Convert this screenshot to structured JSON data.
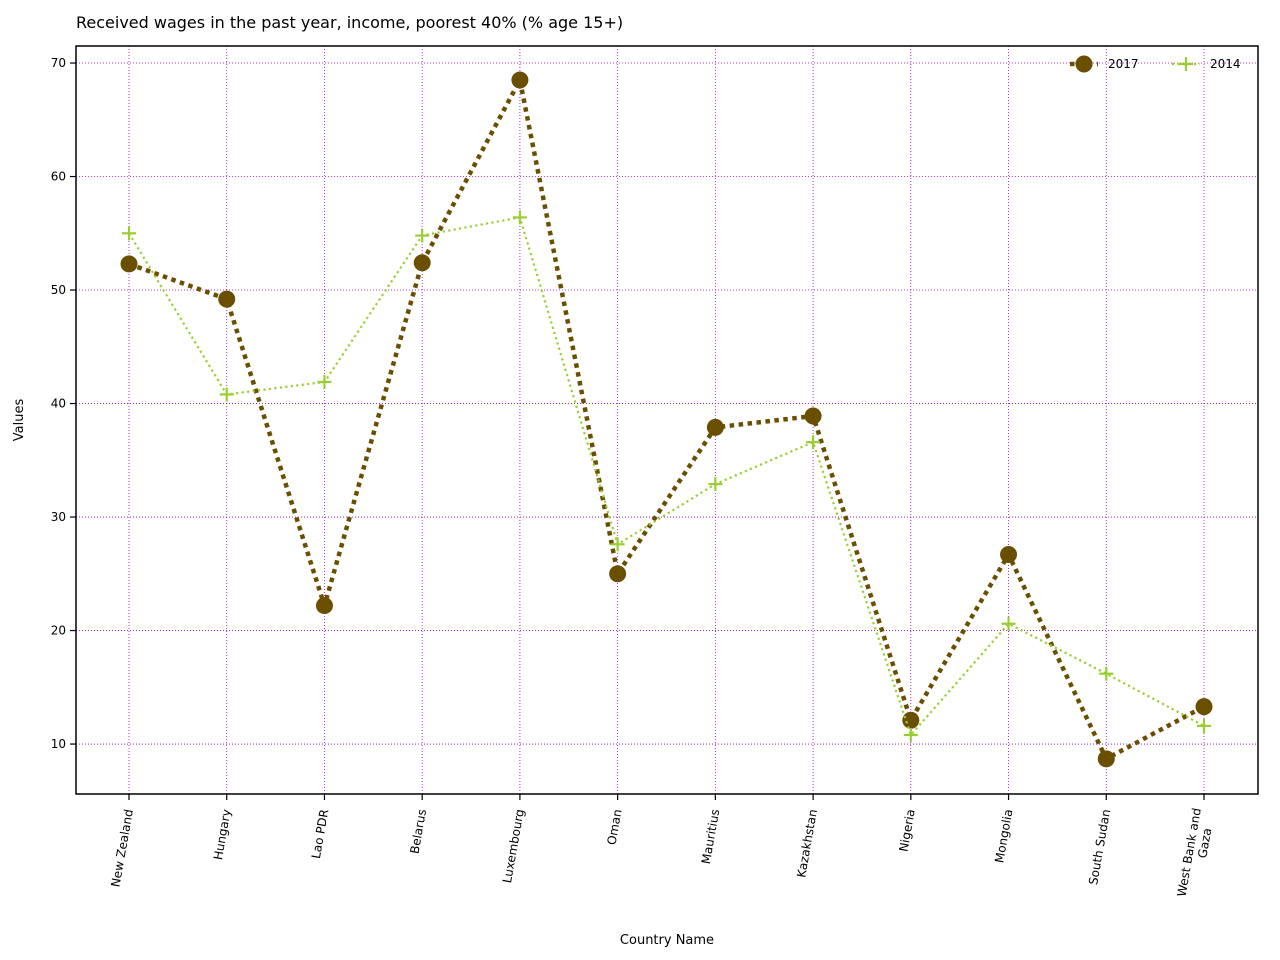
{
  "chart_data": {
    "type": "line",
    "title": "Received wages in the past year, income, poorest 40%  (% age 15+)",
    "xlabel": "Country Name",
    "ylabel": "Values",
    "categories": [
      "New Zealand",
      "Hungary",
      "Lao PDR",
      "Belarus",
      "Luxembourg",
      "Oman",
      "Mauritius",
      "Kazakhstan",
      "Nigeria",
      "Mongolia",
      "South Sudan",
      "West Bank and Gaza"
    ],
    "series": [
      {
        "name": "2017",
        "color": "#6b4f00",
        "marker": "circle",
        "line_style": "dotted-thick",
        "values": [
          52.3,
          49.2,
          22.2,
          52.4,
          68.5,
          25.0,
          37.9,
          38.9,
          12.1,
          26.7,
          8.7,
          13.3
        ]
      },
      {
        "name": "2014",
        "color": "#9acd32",
        "marker": "plus",
        "line_style": "dotted-thin",
        "values": [
          55.0,
          40.8,
          41.9,
          54.8,
          56.4,
          27.6,
          32.9,
          36.6,
          10.8,
          20.6,
          16.2,
          11.6
        ]
      }
    ],
    "yticks": [
      10,
      20,
      30,
      40,
      50,
      60,
      70
    ],
    "ylim": [
      5.6,
      71.5
    ],
    "grid": true,
    "grid_color": "#9400d3",
    "legend_position": "top-right"
  }
}
